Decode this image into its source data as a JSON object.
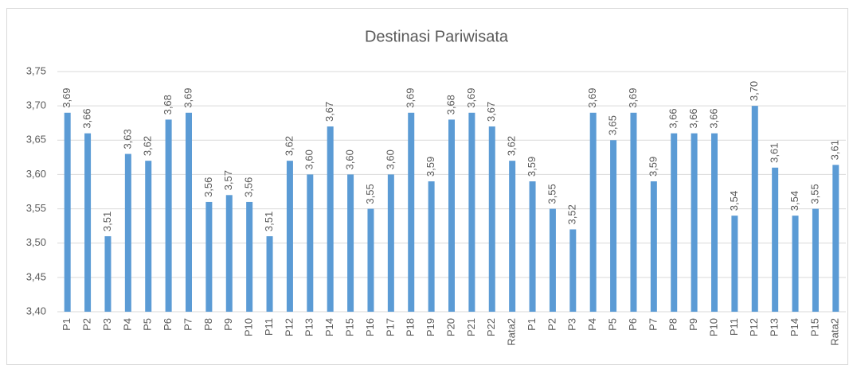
{
  "chart_data": {
    "type": "bar",
    "title": "Destinasi Pariwisata",
    "categories": [
      "P1",
      "P2",
      "P3",
      "P4",
      "P5",
      "P6",
      "P7",
      "P8",
      "P9",
      "P10",
      "P11",
      "P12",
      "P13",
      "P14",
      "P15",
      "P16",
      "P17",
      "P18",
      "P19",
      "P20",
      "P21",
      "P22",
      "Rata2",
      "P1",
      "P2",
      "P3",
      "P4",
      "P5",
      "P6",
      "P7",
      "P8",
      "P9",
      "P10",
      "P11",
      "P12",
      "P13",
      "P14",
      "P15",
      "Rata2"
    ],
    "values": [
      3.69,
      3.66,
      3.51,
      3.63,
      3.62,
      3.68,
      3.69,
      3.56,
      3.57,
      3.56,
      3.51,
      3.62,
      3.6,
      3.67,
      3.6,
      3.55,
      3.6,
      3.69,
      3.59,
      3.68,
      3.69,
      3.67,
      3.62,
      3.59,
      3.55,
      3.52,
      3.69,
      3.65,
      3.69,
      3.59,
      3.66,
      3.66,
      3.66,
      3.54,
      3.7,
      3.61,
      3.54,
      3.55,
      3.614
    ],
    "value_labels": [
      "3,69",
      "3,66",
      "3,51",
      "3,63",
      "3,62",
      "3,68",
      "3,69",
      "3,56",
      "3,57",
      "3,56",
      "3,51",
      "3,62",
      "3,60",
      "3,67",
      "3,60",
      "3,55",
      "3,60",
      "3,69",
      "3,59",
      "3,68",
      "3,69",
      "3,67",
      "3,62",
      "3,59",
      "3,55",
      "3,52",
      "3,69",
      "3,65",
      "3,69",
      "3,59",
      "3,66",
      "3,66",
      "3,66",
      "3,54",
      "3,70",
      "3,61",
      "3,54",
      "3,55",
      "3,61"
    ],
    "color": "#5b9bd5",
    "ylim": [
      3.4,
      3.75
    ],
    "yticks": [
      {
        "value": 3.4,
        "label": "3,40"
      },
      {
        "value": 3.45,
        "label": "3,45"
      },
      {
        "value": 3.5,
        "label": "3,50"
      },
      {
        "value": 3.55,
        "label": "3,55"
      },
      {
        "value": 3.6,
        "label": "3,60"
      },
      {
        "value": 3.65,
        "label": "3,65"
      },
      {
        "value": 3.7,
        "label": "3,70"
      },
      {
        "value": 3.75,
        "label": "3,75"
      }
    ],
    "grid": true
  }
}
